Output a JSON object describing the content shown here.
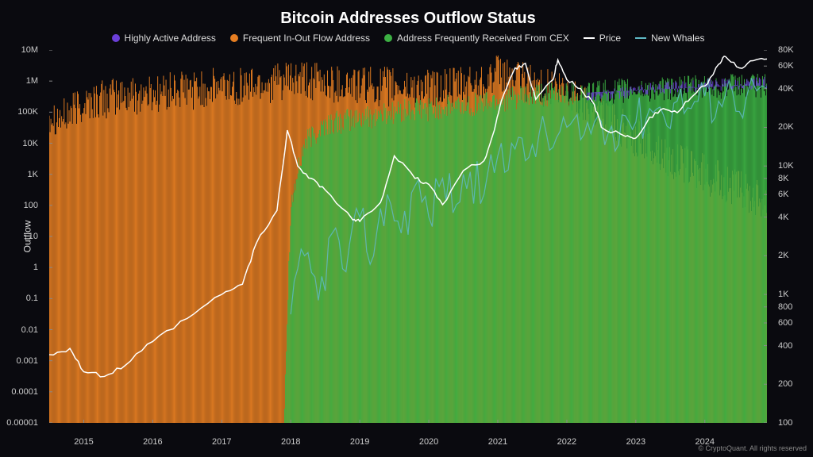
{
  "title": "Bitcoin Addresses Outflow Status",
  "copyright": "© CryptoQuant. All rights reserved",
  "background_color": "#0a0a0f",
  "plot_bg": "#0a0a0f",
  "legend": [
    {
      "label": "Highly Active Address",
      "color": "#6b3fd9",
      "type": "dot"
    },
    {
      "label": "Frequent In-Out Flow Address",
      "color": "#e67e22",
      "type": "dot"
    },
    {
      "label": "Address Frequently Received From CEX",
      "color": "#3cb043",
      "type": "dot"
    },
    {
      "label": "Price",
      "color": "#ffffff",
      "type": "line"
    },
    {
      "label": "New Whales",
      "color": "#5fb9c6",
      "type": "line"
    }
  ],
  "y_left": {
    "label": "Outflow",
    "scale": "log",
    "min_exp": -5,
    "max_exp": 7,
    "ticks": [
      {
        "v": -5,
        "label": "0.00001"
      },
      {
        "v": -4,
        "label": "0.0001"
      },
      {
        "v": -3,
        "label": "0.001"
      },
      {
        "v": -2,
        "label": "0.01"
      },
      {
        "v": -1,
        "label": "0.1"
      },
      {
        "v": 0,
        "label": "1"
      },
      {
        "v": 1,
        "label": "10"
      },
      {
        "v": 2,
        "label": "100"
      },
      {
        "v": 3,
        "label": "1K"
      },
      {
        "v": 4,
        "label": "10K"
      },
      {
        "v": 5,
        "label": "100K"
      },
      {
        "v": 6,
        "label": "1M"
      },
      {
        "v": 7,
        "label": "10M"
      }
    ]
  },
  "y_right": {
    "scale": "log",
    "min": 100,
    "max": 80000,
    "ticks": [
      {
        "v": 100,
        "label": "100"
      },
      {
        "v": 200,
        "label": "200"
      },
      {
        "v": 400,
        "label": "400"
      },
      {
        "v": 600,
        "label": "600"
      },
      {
        "v": 800,
        "label": "800"
      },
      {
        "v": 1000,
        "label": "1K"
      },
      {
        "v": 2000,
        "label": "2K"
      },
      {
        "v": 4000,
        "label": "4K"
      },
      {
        "v": 6000,
        "label": "6K"
      },
      {
        "v": 8000,
        "label": "8K"
      },
      {
        "v": 10000,
        "label": "10K"
      },
      {
        "v": 20000,
        "label": "20K"
      },
      {
        "v": 40000,
        "label": "40K"
      },
      {
        "v": 60000,
        "label": "60K"
      },
      {
        "v": 80000,
        "label": "80K"
      }
    ]
  },
  "x": {
    "min": 2014.5,
    "max": 2024.9,
    "ticks": [
      2015,
      2016,
      2017,
      2018,
      2019,
      2020,
      2021,
      2022,
      2023,
      2024
    ]
  },
  "series_bars": {
    "orange": {
      "color": "#e67e22"
    },
    "green": {
      "color": "#3cb043"
    },
    "purple": {
      "color": "#6b3fd9"
    }
  },
  "orange_envelope": [
    [
      2014.5,
      5.0
    ],
    [
      2014.7,
      4.8
    ],
    [
      2015.0,
      5.3
    ],
    [
      2015.5,
      5.5
    ],
    [
      2016.0,
      5.6
    ],
    [
      2016.5,
      5.7
    ],
    [
      2017.0,
      5.8
    ],
    [
      2017.5,
      5.9
    ],
    [
      2018.0,
      6.0
    ],
    [
      2018.5,
      5.95
    ],
    [
      2019.0,
      5.85
    ],
    [
      2019.5,
      5.8
    ],
    [
      2020.0,
      5.75
    ],
    [
      2020.5,
      5.8
    ],
    [
      2021.0,
      6.2
    ],
    [
      2021.5,
      5.9
    ],
    [
      2022.0,
      5.6
    ],
    [
      2022.5,
      5.0
    ],
    [
      2023.0,
      4.2
    ],
    [
      2023.5,
      3.5
    ],
    [
      2024.0,
      3.0
    ],
    [
      2024.5,
      2.5
    ],
    [
      2024.9,
      2.2
    ]
  ],
  "green_envelope": [
    [
      2017.9,
      -5
    ],
    [
      2018.0,
      2.0
    ],
    [
      2018.2,
      4.0
    ],
    [
      2018.5,
      4.6
    ],
    [
      2019.0,
      4.8
    ],
    [
      2019.5,
      5.0
    ],
    [
      2020.0,
      5.1
    ],
    [
      2020.5,
      5.2
    ],
    [
      2021.0,
      5.4
    ],
    [
      2021.5,
      5.5
    ],
    [
      2022.0,
      5.6
    ],
    [
      2022.5,
      5.65
    ],
    [
      2023.0,
      5.7
    ],
    [
      2023.5,
      5.75
    ],
    [
      2024.0,
      5.8
    ],
    [
      2024.5,
      5.85
    ],
    [
      2024.9,
      5.85
    ]
  ],
  "purple_envelope": [
    [
      2022.3,
      5.5
    ],
    [
      2022.6,
      5.55
    ],
    [
      2023.0,
      5.7
    ],
    [
      2023.5,
      5.8
    ],
    [
      2024.0,
      5.85
    ],
    [
      2024.5,
      5.9
    ],
    [
      2024.9,
      5.95
    ]
  ],
  "price_line": {
    "color": "#ffffff",
    "width": 1.5,
    "points": [
      [
        2014.5,
        340
      ],
      [
        2014.8,
        380
      ],
      [
        2015.0,
        250
      ],
      [
        2015.3,
        230
      ],
      [
        2015.6,
        280
      ],
      [
        2016.0,
        430
      ],
      [
        2016.5,
        650
      ],
      [
        2017.0,
        1000
      ],
      [
        2017.3,
        1200
      ],
      [
        2017.5,
        2500
      ],
      [
        2017.8,
        4500
      ],
      [
        2017.95,
        19000
      ],
      [
        2018.1,
        10000
      ],
      [
        2018.3,
        8000
      ],
      [
        2018.5,
        6500
      ],
      [
        2018.9,
        3800
      ],
      [
        2019.0,
        3700
      ],
      [
        2019.3,
        5200
      ],
      [
        2019.5,
        12000
      ],
      [
        2019.8,
        8000
      ],
      [
        2020.0,
        7200
      ],
      [
        2020.2,
        5000
      ],
      [
        2020.5,
        9200
      ],
      [
        2020.8,
        11000
      ],
      [
        2020.95,
        19000
      ],
      [
        2021.05,
        32000
      ],
      [
        2021.25,
        58000
      ],
      [
        2021.4,
        63000
      ],
      [
        2021.55,
        33000
      ],
      [
        2021.8,
        47000
      ],
      [
        2021.87,
        67000
      ],
      [
        2022.0,
        47000
      ],
      [
        2022.2,
        40000
      ],
      [
        2022.4,
        30000
      ],
      [
        2022.5,
        20000
      ],
      [
        2022.85,
        17000
      ],
      [
        2023.0,
        16500
      ],
      [
        2023.2,
        24000
      ],
      [
        2023.4,
        28000
      ],
      [
        2023.6,
        26000
      ],
      [
        2023.8,
        34000
      ],
      [
        2024.0,
        42000
      ],
      [
        2024.2,
        62000
      ],
      [
        2024.3,
        71000
      ],
      [
        2024.5,
        58000
      ],
      [
        2024.7,
        66000
      ],
      [
        2024.9,
        68000
      ]
    ]
  },
  "newwhales_line": {
    "color": "#5fb9c6",
    "width": 1.2,
    "points": [
      [
        2018.0,
        700
      ],
      [
        2018.2,
        2000
      ],
      [
        2018.4,
        900
      ],
      [
        2018.6,
        3000
      ],
      [
        2018.8,
        1500
      ],
      [
        2019.0,
        4000
      ],
      [
        2019.2,
        2000
      ],
      [
        2019.4,
        6000
      ],
      [
        2019.6,
        3000
      ],
      [
        2019.8,
        7000
      ],
      [
        2020.0,
        4000
      ],
      [
        2020.2,
        8000
      ],
      [
        2020.4,
        5000
      ],
      [
        2020.6,
        9000
      ],
      [
        2020.8,
        6000
      ],
      [
        2021.0,
        12000
      ],
      [
        2021.2,
        15000
      ],
      [
        2021.4,
        11000
      ],
      [
        2021.6,
        18000
      ],
      [
        2021.8,
        14000
      ],
      [
        2022.0,
        20000
      ],
      [
        2022.2,
        16000
      ],
      [
        2022.4,
        22000
      ],
      [
        2022.6,
        18000
      ],
      [
        2022.8,
        25000
      ],
      [
        2023.0,
        22000
      ],
      [
        2023.2,
        28000
      ],
      [
        2023.4,
        25000
      ],
      [
        2023.6,
        32000
      ],
      [
        2023.8,
        28000
      ],
      [
        2024.0,
        35000
      ],
      [
        2024.2,
        32000
      ],
      [
        2024.4,
        38000
      ],
      [
        2024.6,
        34000
      ],
      [
        2024.9,
        40000
      ]
    ]
  },
  "grid_color": "#2a2a35",
  "axis_color": "#555",
  "tick_font_size": 11,
  "title_font_size": 20
}
